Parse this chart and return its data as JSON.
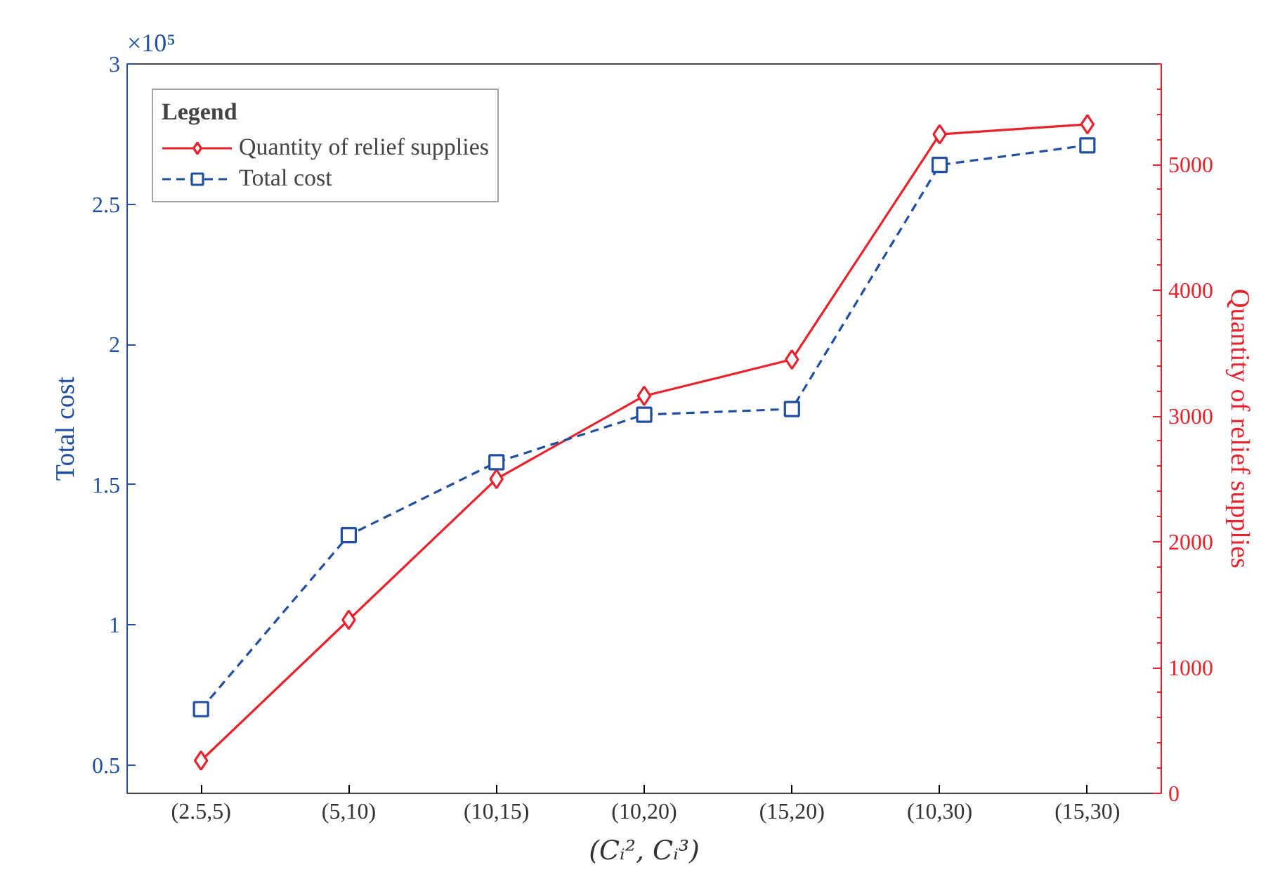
{
  "chart_data": {
    "type": "line",
    "xlabel": "(Cᵢ², Cᵢ³)",
    "ylabel": "Total cost",
    "y2label": "Quantity of relief supplies",
    "categories": [
      "(2.5,5)",
      "(5,10)",
      "(10,15)",
      "(10,20)",
      "(15,20)",
      "(10,30)",
      "(15,30)"
    ],
    "series": [
      {
        "name": "Quantity of relief supplies",
        "color": "#e8212b",
        "axis": "y2",
        "marker": "diamond",
        "line_style": "solid",
        "values": [
          260,
          1380,
          2500,
          3160,
          3450,
          5240,
          5320
        ]
      },
      {
        "name": "Total cost",
        "color": "#1f4ea3",
        "marker": "square",
        "line_style": "dashed",
        "values": [
          0.7,
          1.32,
          1.58,
          1.75,
          1.77,
          2.64,
          2.71
        ]
      }
    ],
    "ylim": [
      0.4,
      3
    ],
    "yticks": [
      0.5,
      1,
      1.5,
      2,
      2.5,
      3
    ],
    "y2lim": [
      0,
      5800
    ],
    "y2ticks": [
      0,
      1000,
      2000,
      3000,
      4000,
      5000
    ],
    "annotations": [
      "×10⁵"
    ],
    "legend": "top left",
    "legend_title": "Legend",
    "grid": false
  }
}
